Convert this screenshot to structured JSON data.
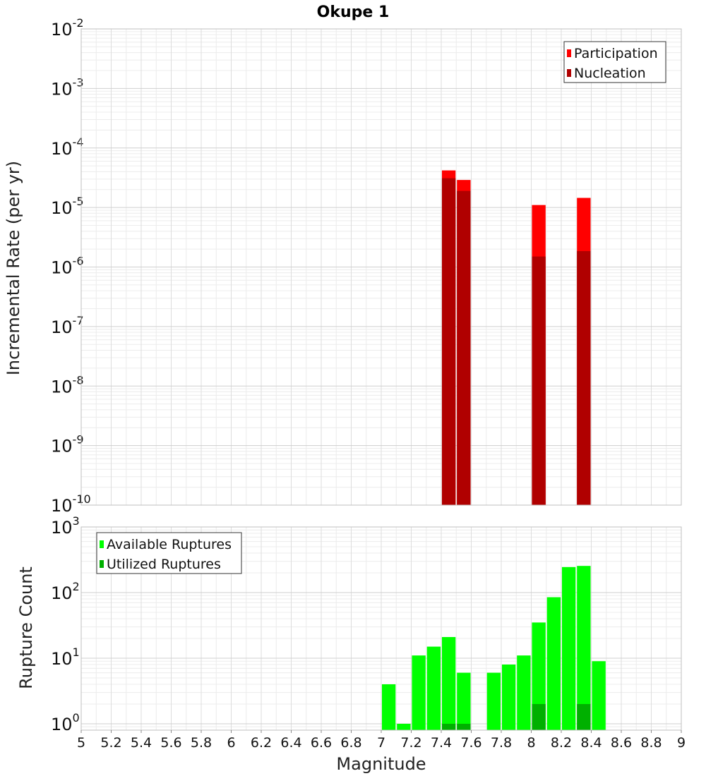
{
  "chart_data": [
    {
      "type": "bar",
      "title": "Okupe 1",
      "ylabel": "Incremental Rate (per yr)",
      "xlabel": "",
      "yscale": "log",
      "ylim": [
        1e-10,
        0.01
      ],
      "xlim": [
        5,
        9
      ],
      "ytick_exponents": [
        -10,
        -9,
        -8,
        -7,
        -6,
        -5,
        -4,
        -3,
        -2
      ],
      "legend": "top-right",
      "grid": true,
      "series": [
        {
          "name": "Participation",
          "color": "#ff0000",
          "x": [
            7.45,
            7.55,
            8.05,
            8.35
          ],
          "values": [
            4.2e-05,
            2.9e-05,
            1.1e-05,
            1.45e-05
          ]
        },
        {
          "name": "Nucleation",
          "color": "#b00000",
          "x": [
            7.45,
            7.55,
            8.05,
            8.35
          ],
          "values": [
            3.1e-05,
            1.9e-05,
            1.5e-06,
            1.85e-06
          ]
        }
      ]
    },
    {
      "type": "bar",
      "title": "",
      "ylabel": "Rupture Count",
      "xlabel": "Magnitude",
      "yscale": "log",
      "ylim": [
        0.8,
        1000
      ],
      "xlim": [
        5,
        9
      ],
      "ytick_exponents": [
        0,
        1,
        2,
        3
      ],
      "xticks": [
        "5",
        "5.2",
        "5.4",
        "5.6",
        "5.8",
        "6",
        "6.2",
        "6.4",
        "6.6",
        "6.8",
        "7",
        "7.2",
        "7.4",
        "7.6",
        "7.8",
        "8",
        "8.2",
        "8.4",
        "8.6",
        "8.8",
        "9"
      ],
      "legend": "top-left",
      "grid": true,
      "series": [
        {
          "name": "Available Ruptures",
          "color": "#00ff00",
          "x": [
            7.05,
            7.15,
            7.25,
            7.35,
            7.45,
            7.55,
            7.75,
            7.85,
            7.95,
            8.05,
            8.15,
            8.25,
            8.35,
            8.45
          ],
          "values": [
            4,
            1,
            11,
            15,
            21,
            6,
            6,
            8,
            11,
            35,
            85,
            245,
            255,
            9
          ]
        },
        {
          "name": "Utilized Ruptures",
          "color": "#00b000",
          "x": [
            7.45,
            7.55,
            8.05,
            8.35
          ],
          "values": [
            1,
            1,
            2,
            2
          ]
        }
      ]
    }
  ]
}
